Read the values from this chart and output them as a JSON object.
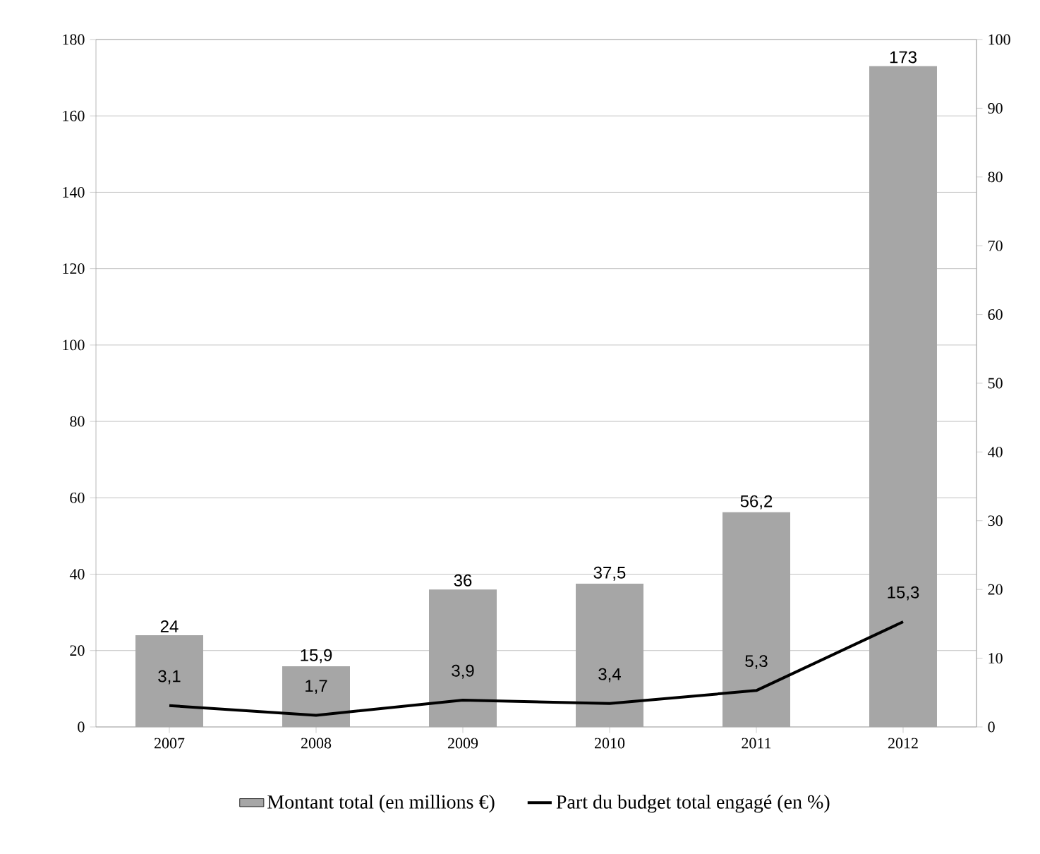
{
  "chart_data": {
    "type": "bar",
    "categories": [
      "2007",
      "2008",
      "2009",
      "2010",
      "2011",
      "2012"
    ],
    "series": [
      {
        "name": "Montant total (en millions €)",
        "color": "#a6a6a6",
        "values": [
          24,
          15.9,
          36,
          37.5,
          56.2,
          173
        ],
        "value_labels": [
          "24",
          "15,9",
          "36",
          "37,5",
          "56,2",
          "173"
        ]
      },
      {
        "name": "Part du budget total engagé (en %)",
        "type": "line",
        "axis": "y2",
        "color": "#000000",
        "values": [
          3.1,
          1.7,
          3.9,
          3.4,
          5.3,
          15.3
        ],
        "value_labels": [
          "3,1",
          "1,7",
          "3,9",
          "3,4",
          "5,3",
          "15,3"
        ]
      }
    ],
    "ylim": [
      0,
      180
    ],
    "yticks": [
      0,
      20,
      40,
      60,
      80,
      100,
      120,
      140,
      160,
      180
    ],
    "y2lim": [
      0,
      100
    ],
    "y2ticks": [
      0,
      10,
      20,
      30,
      40,
      50,
      60,
      70,
      80,
      90,
      100
    ],
    "grid": "y",
    "legend": "bottom"
  }
}
